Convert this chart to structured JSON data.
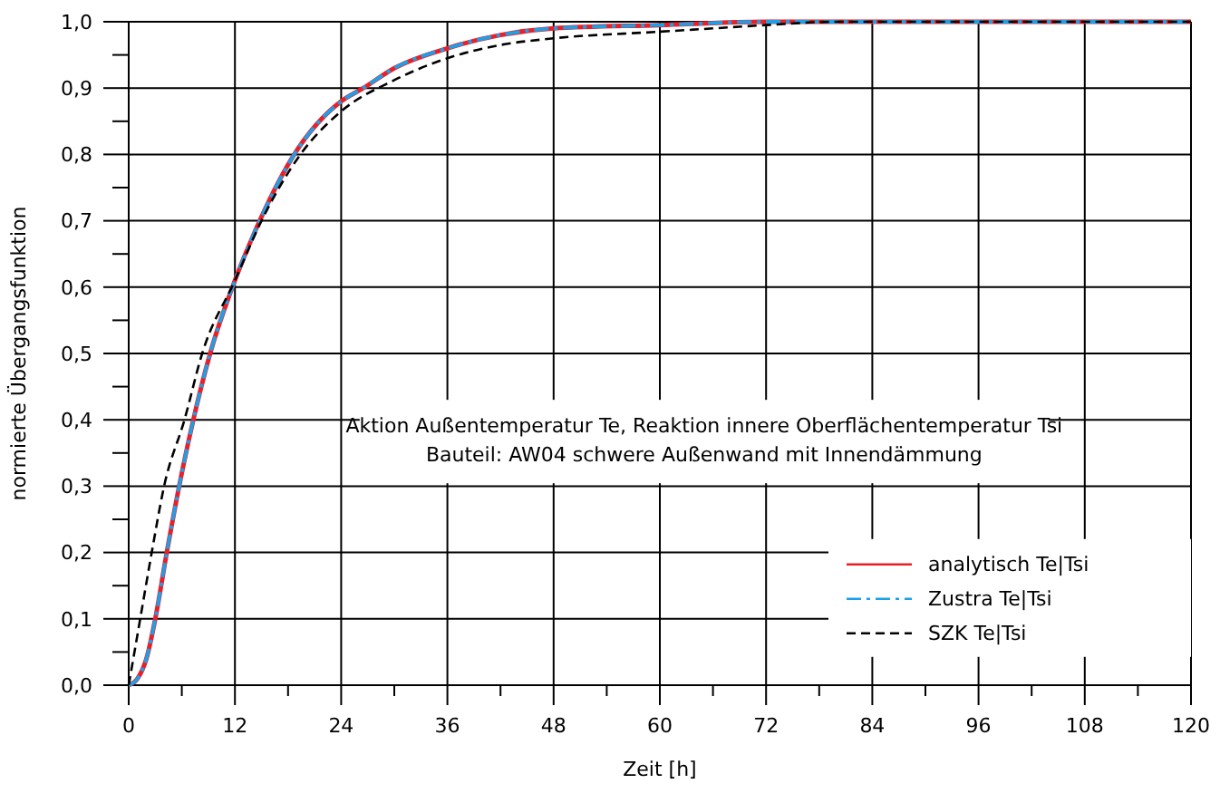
{
  "chart_data": {
    "type": "line",
    "xlabel": "Zeit [h]",
    "ylabel": "normierte Übergangsfunktion",
    "annotations": [
      "Aktion Außentemperatur Te, Reaktion innere Oberflächentemperatur Tsi",
      "Bauteil: AW04 schwere Außenwand mit Innendämmung"
    ],
    "x": [
      0,
      1,
      2,
      3,
      4.3,
      5.7,
      7.3,
      9.2,
      12,
      14.8,
      18.7,
      24,
      26.5,
      30,
      36,
      42,
      48,
      60,
      72,
      84,
      96,
      108,
      120
    ],
    "series": [
      {
        "name": "analytisch Te|Tsi",
        "color": "#e8202a",
        "line_style": "solid",
        "values": [
          0,
          0.01,
          0.04,
          0.1,
          0.2,
          0.3,
          0.4,
          0.5,
          0.61,
          0.7,
          0.8,
          0.88,
          0.9,
          0.93,
          0.96,
          0.98,
          0.99,
          0.995,
          1.0,
          1.0,
          1.0,
          1.0,
          1.0
        ]
      },
      {
        "name": "Zustra Te|Tsi",
        "color": "#1ea0e6",
        "line_style": "dashdot",
        "values": [
          0,
          0.01,
          0.04,
          0.1,
          0.2,
          0.3,
          0.4,
          0.5,
          0.61,
          0.7,
          0.8,
          0.88,
          0.9,
          0.93,
          0.96,
          0.98,
          0.99,
          0.995,
          1.0,
          1.0,
          1.0,
          1.0,
          1.0
        ]
      },
      {
        "name": "SZK Te|Tsi",
        "color": "#000000",
        "line_style": "dashed",
        "x": [
          0,
          1.3,
          2.6,
          4,
          6.3,
          8.3,
          12,
          15,
          19.4,
          24,
          30,
          36,
          42,
          48,
          60,
          66,
          72,
          80,
          96,
          108,
          120
        ],
        "values": [
          0,
          0.1,
          0.2,
          0.3,
          0.4,
          0.5,
          0.61,
          0.7,
          0.8,
          0.865,
          0.912,
          0.945,
          0.965,
          0.975,
          0.985,
          0.99,
          0.995,
          1.0,
          1.0,
          1.0,
          1.0
        ]
      }
    ],
    "xlim": [
      0,
      120
    ],
    "ylim": [
      0,
      1
    ],
    "xticks": [
      0,
      {
        "value": 6,
        "label": null
      },
      12,
      {
        "value": 18,
        "label": null
      },
      24,
      {
        "value": 30,
        "label": null
      },
      36,
      {
        "value": 42,
        "label": null
      },
      48,
      {
        "value": 54,
        "label": null
      },
      60,
      {
        "value": 66,
        "label": null
      },
      72,
      {
        "value": 78,
        "label": null
      },
      84,
      {
        "value": 90,
        "label": null
      },
      96,
      {
        "value": 102,
        "label": null
      },
      108,
      {
        "value": 114,
        "label": null
      },
      120
    ],
    "yticks": [
      {
        "value": 0,
        "label": "0,0"
      },
      {
        "value": 0.05,
        "label": null
      },
      {
        "value": 0.1,
        "label": "0,1"
      },
      {
        "value": 0.15,
        "label": null
      },
      {
        "value": 0.2,
        "label": "0,2"
      },
      {
        "value": 0.25,
        "label": null
      },
      {
        "value": 0.3,
        "label": "0,3"
      },
      {
        "value": 0.35,
        "label": null
      },
      {
        "value": 0.4,
        "label": "0,4"
      },
      {
        "value": 0.45,
        "label": null
      },
      {
        "value": 0.5,
        "label": "0,5"
      },
      {
        "value": 0.55,
        "label": null
      },
      {
        "value": 0.6,
        "label": "0,6"
      },
      {
        "value": 0.65,
        "label": null
      },
      {
        "value": 0.7,
        "label": "0,7"
      },
      {
        "value": 0.75,
        "label": null
      },
      {
        "value": 0.8,
        "label": "0,8"
      },
      {
        "value": 0.85,
        "label": null
      },
      {
        "value": 0.9,
        "label": "0,9"
      },
      {
        "value": 0.95,
        "label": null
      },
      {
        "value": 1,
        "label": "1,0"
      }
    ],
    "grid": true,
    "legend": "bottom right"
  }
}
